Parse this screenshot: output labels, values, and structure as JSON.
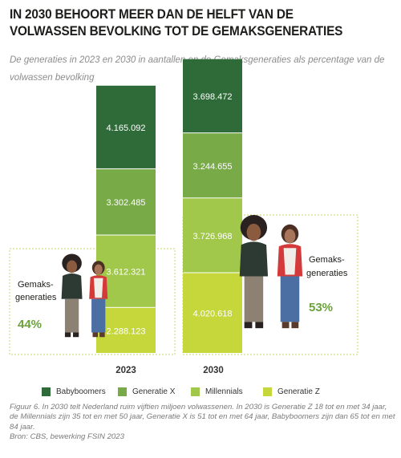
{
  "header": {
    "title": "IN 2030 BEHOORT MEER DAN DE HELFT VAN DE VOLWASSEN BEVOLKING TOT DE GEMAKSGENERATIES",
    "subtitle": "De generaties in 2023 en 2030 in aantallen en de Gemaksgeneraties als percentage van de volwassen bevolking"
  },
  "chart_data": {
    "type": "bar",
    "stacked": true,
    "categories": [
      "2023",
      "2030"
    ],
    "series": [
      {
        "name": "Generatie Z",
        "color": "#c5d73b",
        "values": [
          2288123,
          4020618
        ],
        "labels": [
          "2.288.123",
          "4.020.618"
        ]
      },
      {
        "name": "Millennials",
        "color": "#a1c84a",
        "values": [
          3612321,
          3726968
        ],
        "labels": [
          "3.612.321",
          "3.726.968"
        ]
      },
      {
        "name": "Generatie X",
        "color": "#78aa48",
        "values": [
          3302485,
          3244655
        ],
        "labels": [
          "3.302.485",
          "3.244.655"
        ]
      },
      {
        "name": "Babyboomers",
        "color": "#2f6b38",
        "values": [
          4165092,
          3698472
        ],
        "labels": [
          "4.165.092",
          "3.698.472"
        ]
      }
    ],
    "legend_order": [
      "Babyboomers",
      "Generatie X",
      "Millennials",
      "Generatie Z"
    ],
    "legend_position": "bottom",
    "gemaksgeneraties": [
      {
        "year": "2023",
        "label_line1": "Gemaks-",
        "label_line2": "generaties",
        "percentage": "44%"
      },
      {
        "year": "2030",
        "label_line1": "Gemaks-",
        "label_line2": "generaties",
        "percentage": "53%"
      }
    ]
  },
  "caption": {
    "figure_note": "Figuur 6. In 2030 telt Nederland ruim vijftien miljoen volwassenen. In 2030 is Generatie Z 18 tot en met 34 jaar, de Millennials zijn 35 tot en met 50 jaar, Generatie X is 51 tot en met 64 jaar, Babyboomers zijn dan 65 tot en met 84 jaar.",
    "source": "Bron: CBS, bewerking FSIN 2023"
  }
}
